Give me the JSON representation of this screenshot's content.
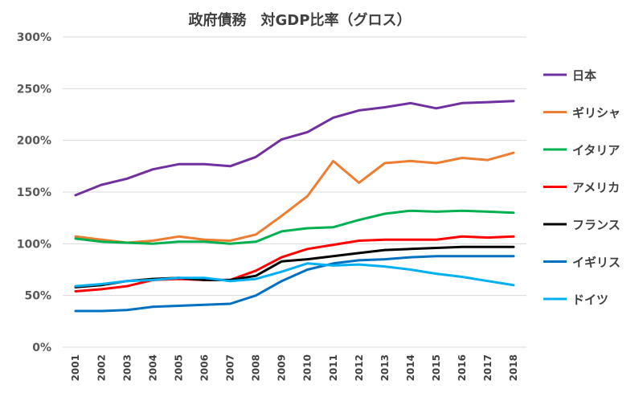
{
  "chart_data": {
    "type": "line",
    "title": "政府債務　対GDP比率（グロス）",
    "xlabel": "",
    "ylabel": "",
    "categories": [
      "2001",
      "2002",
      "2003",
      "2004",
      "2005",
      "2006",
      "2007",
      "2008",
      "2009",
      "2010",
      "2011",
      "2012",
      "2013",
      "2014",
      "2015",
      "2016",
      "2017",
      "2018"
    ],
    "ylim": [
      0,
      300
    ],
    "yticks": [
      "0%",
      "50%",
      "100%",
      "150%",
      "200%",
      "250%",
      "300%"
    ],
    "grid": true,
    "legend_position": "right",
    "series": [
      {
        "name": "日本",
        "color": "#7030a0",
        "values": [
          147,
          157,
          163,
          172,
          177,
          177,
          175,
          184,
          201,
          208,
          222,
          229,
          232,
          236,
          231,
          236,
          237,
          238
        ]
      },
      {
        "name": "ギリシャ",
        "color": "#ed7d31",
        "values": [
          107,
          104,
          101,
          103,
          107,
          104,
          103,
          109,
          127,
          146,
          180,
          159,
          178,
          180,
          178,
          183,
          181,
          188
        ]
      },
      {
        "name": "イタリア",
        "color": "#00b050",
        "values": [
          105,
          102,
          101,
          100,
          102,
          102,
          100,
          102,
          112,
          115,
          116,
          123,
          129,
          132,
          131,
          132,
          131,
          130
        ]
      },
      {
        "name": "アメリカ",
        "color": "#ff0000",
        "values": [
          54,
          56,
          59,
          65,
          66,
          65,
          65,
          74,
          87,
          95,
          99,
          103,
          104,
          104,
          104,
          107,
          106,
          107
        ]
      },
      {
        "name": "フランス",
        "color": "#000000",
        "values": [
          58,
          60,
          64,
          66,
          67,
          65,
          65,
          69,
          83,
          85,
          88,
          91,
          94,
          95,
          96,
          97,
          97,
          97
        ]
      },
      {
        "name": "イギリス",
        "color": "#0070c0",
        "values": [
          35,
          35,
          36,
          39,
          40,
          41,
          42,
          50,
          64,
          75,
          81,
          84,
          85,
          87,
          88,
          88,
          88,
          88
        ]
      },
      {
        "name": "ドイツ",
        "color": "#00b0f0",
        "values": [
          59,
          61,
          64,
          65,
          67,
          67,
          64,
          66,
          73,
          81,
          79,
          80,
          78,
          75,
          71,
          68,
          64,
          60
        ]
      }
    ]
  }
}
